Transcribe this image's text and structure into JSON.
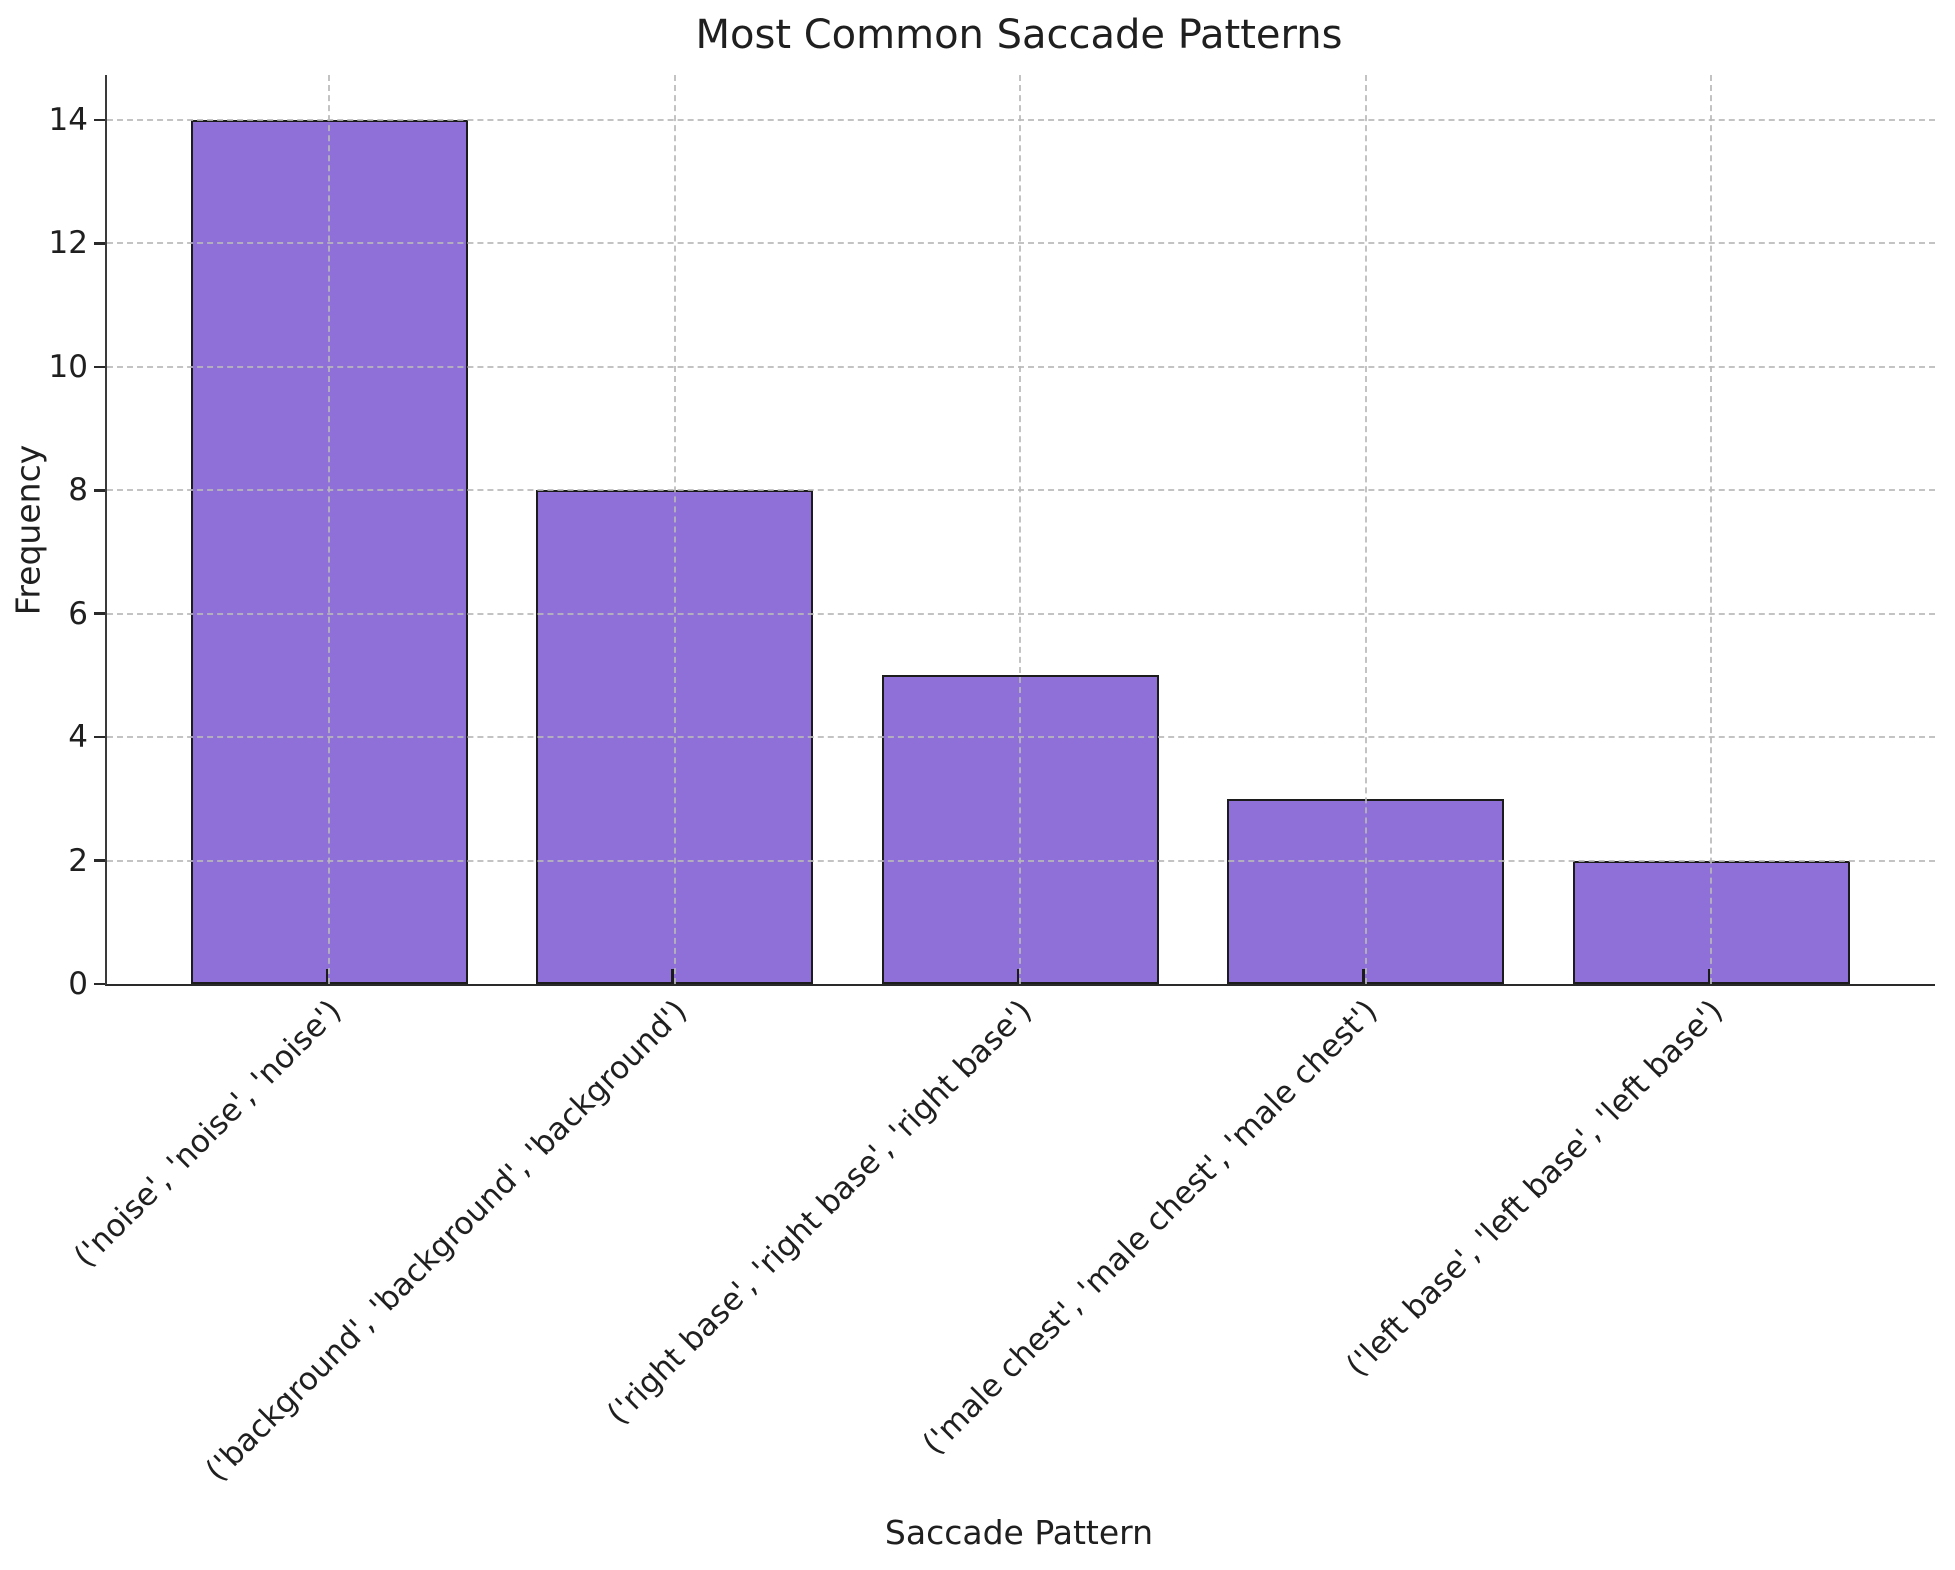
{
  "chart_data": {
    "type": "bar",
    "title": "Most Common Saccade Patterns",
    "xlabel": "Saccade Pattern",
    "ylabel": "Frequency",
    "categories": [
      "('noise', 'noise', 'noise')",
      "('background', 'background', 'background')",
      "('right base', 'right base', 'right base')",
      "('male chest', 'male chest', 'male chest')",
      "('left base', 'left base', 'left base')"
    ],
    "values": [
      14,
      8,
      5,
      3,
      2
    ],
    "yticks": [
      0,
      2,
      4,
      6,
      8,
      10,
      12,
      14
    ],
    "ylim": [
      0,
      14.73
    ],
    "grid": true,
    "grid_style": "dashed",
    "grid_over_bars": true,
    "legend": "none",
    "tick_label_rotation": 45,
    "colors": {
      "bar_fill": "#8e70d8",
      "bar_edge": "#1c1c1c",
      "grid": "#b9b9b9",
      "spine": "#3a3a3a",
      "text": "#1f1f1f"
    }
  }
}
